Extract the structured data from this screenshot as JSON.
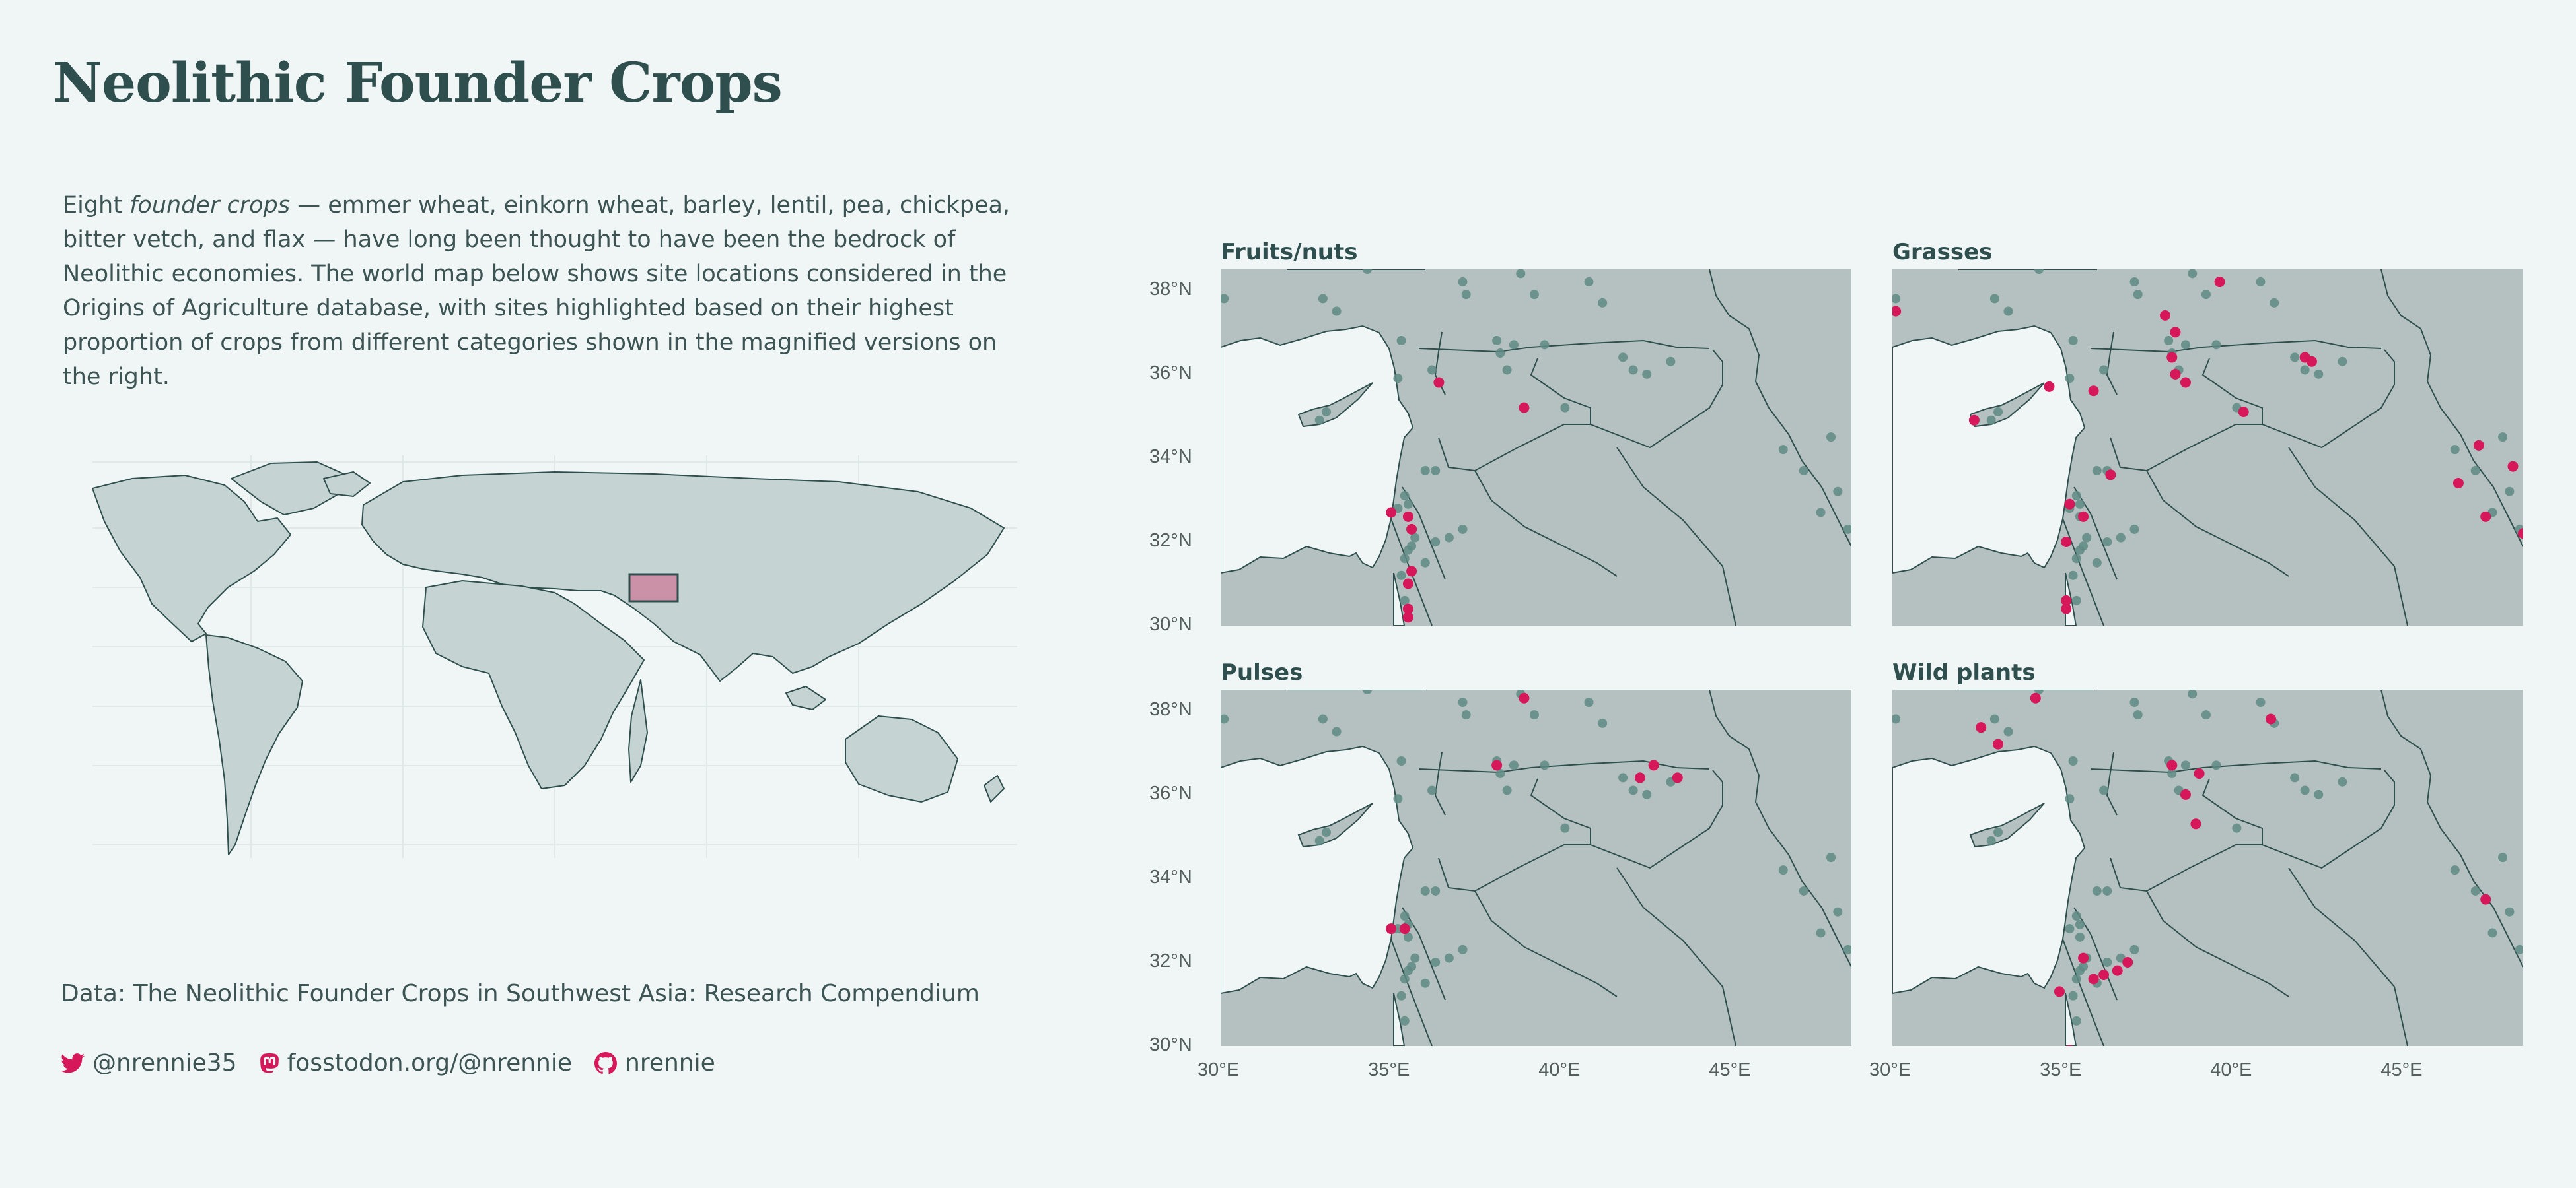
{
  "title": "Neolithic Founder Crops",
  "intro": {
    "part1": "Eight ",
    "emphasis": "founder crops",
    "part2": " — emmer wheat, einkorn wheat, barley, lentil, pea, chickpea, bitter vetch, and flax — have long been thought to have been the bedrock of Neolithic economies. The world map below shows site locations considered in the Origins of Agriculture database, with sites highlighted based on their highest proportion of crops from different categories shown in the magnified versions on the right."
  },
  "source": "Data: The Neolithic Founder Crops in Southwest Asia: Research Compendium",
  "social": {
    "twitter": "@nrennie35",
    "mastodon": "fosstodon.org/@nrennie",
    "github": "nrennie"
  },
  "colors": {
    "background": "#f0f5f5",
    "text": "#2f4f4f",
    "land_world": "#c5d4d2",
    "land_panel": "#b4c1c0",
    "site": "#5e8a84",
    "highlight": "#d6185a"
  },
  "icons": [
    "twitter-icon",
    "mastodon-icon",
    "github-icon"
  ],
  "chart_data": {
    "type": "map-facets",
    "x_ticks": [
      "30°E",
      "35°E",
      "40°E",
      "45°E"
    ],
    "y_ticks": [
      "38°N",
      "36°N",
      "34°N",
      "32°N",
      "30°N"
    ],
    "xlim": [
      30,
      48.5
    ],
    "ylim": [
      30,
      38.5
    ],
    "panels": [
      {
        "title": "Fruits/nuts",
        "highlight": [
          [
            36.4,
            35.8
          ],
          [
            38.9,
            35.2
          ],
          [
            35.0,
            32.7
          ],
          [
            35.5,
            32.6
          ],
          [
            35.6,
            32.3
          ],
          [
            35.6,
            31.3
          ],
          [
            35.5,
            31.0
          ],
          [
            35.5,
            30.4
          ],
          [
            35.5,
            30.2
          ]
        ]
      },
      {
        "title": "Grasses",
        "highlight": [
          [
            30.1,
            37.5
          ],
          [
            32.4,
            34.9
          ],
          [
            34.6,
            35.7
          ],
          [
            35.9,
            35.6
          ],
          [
            39.6,
            38.2
          ],
          [
            38.0,
            37.4
          ],
          [
            38.3,
            37.0
          ],
          [
            38.2,
            36.4
          ],
          [
            38.3,
            36.0
          ],
          [
            38.6,
            35.8
          ],
          [
            40.3,
            35.1
          ],
          [
            42.1,
            36.4
          ],
          [
            42.3,
            36.3
          ],
          [
            35.2,
            32.9
          ],
          [
            35.6,
            32.6
          ],
          [
            36.4,
            33.6
          ],
          [
            35.1,
            32.0
          ],
          [
            35.1,
            30.6
          ],
          [
            35.1,
            30.4
          ],
          [
            47.2,
            34.3
          ],
          [
            46.6,
            33.4
          ],
          [
            48.2,
            33.8
          ],
          [
            47.4,
            32.6
          ],
          [
            48.5,
            32.2
          ]
        ]
      },
      {
        "title": "Pulses",
        "highlight": [
          [
            38.9,
            38.3
          ],
          [
            38.1,
            36.7
          ],
          [
            42.3,
            36.4
          ],
          [
            42.7,
            36.7
          ],
          [
            43.4,
            36.4
          ],
          [
            35.0,
            32.8
          ],
          [
            35.4,
            32.8
          ]
        ]
      },
      {
        "title": "Wild plants",
        "highlight": [
          [
            32.6,
            37.6
          ],
          [
            33.1,
            37.2
          ],
          [
            34.2,
            38.3
          ],
          [
            41.1,
            37.8
          ],
          [
            38.2,
            36.7
          ],
          [
            38.6,
            36.0
          ],
          [
            39.0,
            36.5
          ],
          [
            38.9,
            35.3
          ],
          [
            35.6,
            32.1
          ],
          [
            36.2,
            31.7
          ],
          [
            36.6,
            31.8
          ],
          [
            36.9,
            32.0
          ],
          [
            34.9,
            31.3
          ],
          [
            35.9,
            31.6
          ],
          [
            35.2,
            29.9
          ],
          [
            47.4,
            33.5
          ]
        ]
      }
    ],
    "sites": [
      [
        30.1,
        37.8
      ],
      [
        33.0,
        37.8
      ],
      [
        33.4,
        37.5
      ],
      [
        34.3,
        38.5
      ],
      [
        37.2,
        37.9
      ],
      [
        37.1,
        38.2
      ],
      [
        38.8,
        38.4
      ],
      [
        39.2,
        37.9
      ],
      [
        40.8,
        38.2
      ],
      [
        41.2,
        37.7
      ],
      [
        35.3,
        36.8
      ],
      [
        36.2,
        36.1
      ],
      [
        38.1,
        36.8
      ],
      [
        38.2,
        36.5
      ],
      [
        38.6,
        36.7
      ],
      [
        39.5,
        36.7
      ],
      [
        38.4,
        36.1
      ],
      [
        40.1,
        35.2
      ],
      [
        41.8,
        36.4
      ],
      [
        42.1,
        36.1
      ],
      [
        42.5,
        36.0
      ],
      [
        43.2,
        36.3
      ],
      [
        33.1,
        35.1
      ],
      [
        32.9,
        34.9
      ],
      [
        35.2,
        35.9
      ],
      [
        36.0,
        33.7
      ],
      [
        36.3,
        33.7
      ],
      [
        35.4,
        33.1
      ],
      [
        35.2,
        32.8
      ],
      [
        35.5,
        32.9
      ],
      [
        35.5,
        32.6
      ],
      [
        35.7,
        32.1
      ],
      [
        35.5,
        31.8
      ],
      [
        35.4,
        31.6
      ],
      [
        35.3,
        31.2
      ],
      [
        35.4,
        30.6
      ],
      [
        35.6,
        31.9
      ],
      [
        36.0,
        31.5
      ],
      [
        36.3,
        32.0
      ],
      [
        36.7,
        32.1
      ],
      [
        37.1,
        32.3
      ],
      [
        46.5,
        34.2
      ],
      [
        47.1,
        33.7
      ],
      [
        47.9,
        34.5
      ],
      [
        48.1,
        33.2
      ],
      [
        48.4,
        32.3
      ],
      [
        47.6,
        32.7
      ]
    ]
  }
}
